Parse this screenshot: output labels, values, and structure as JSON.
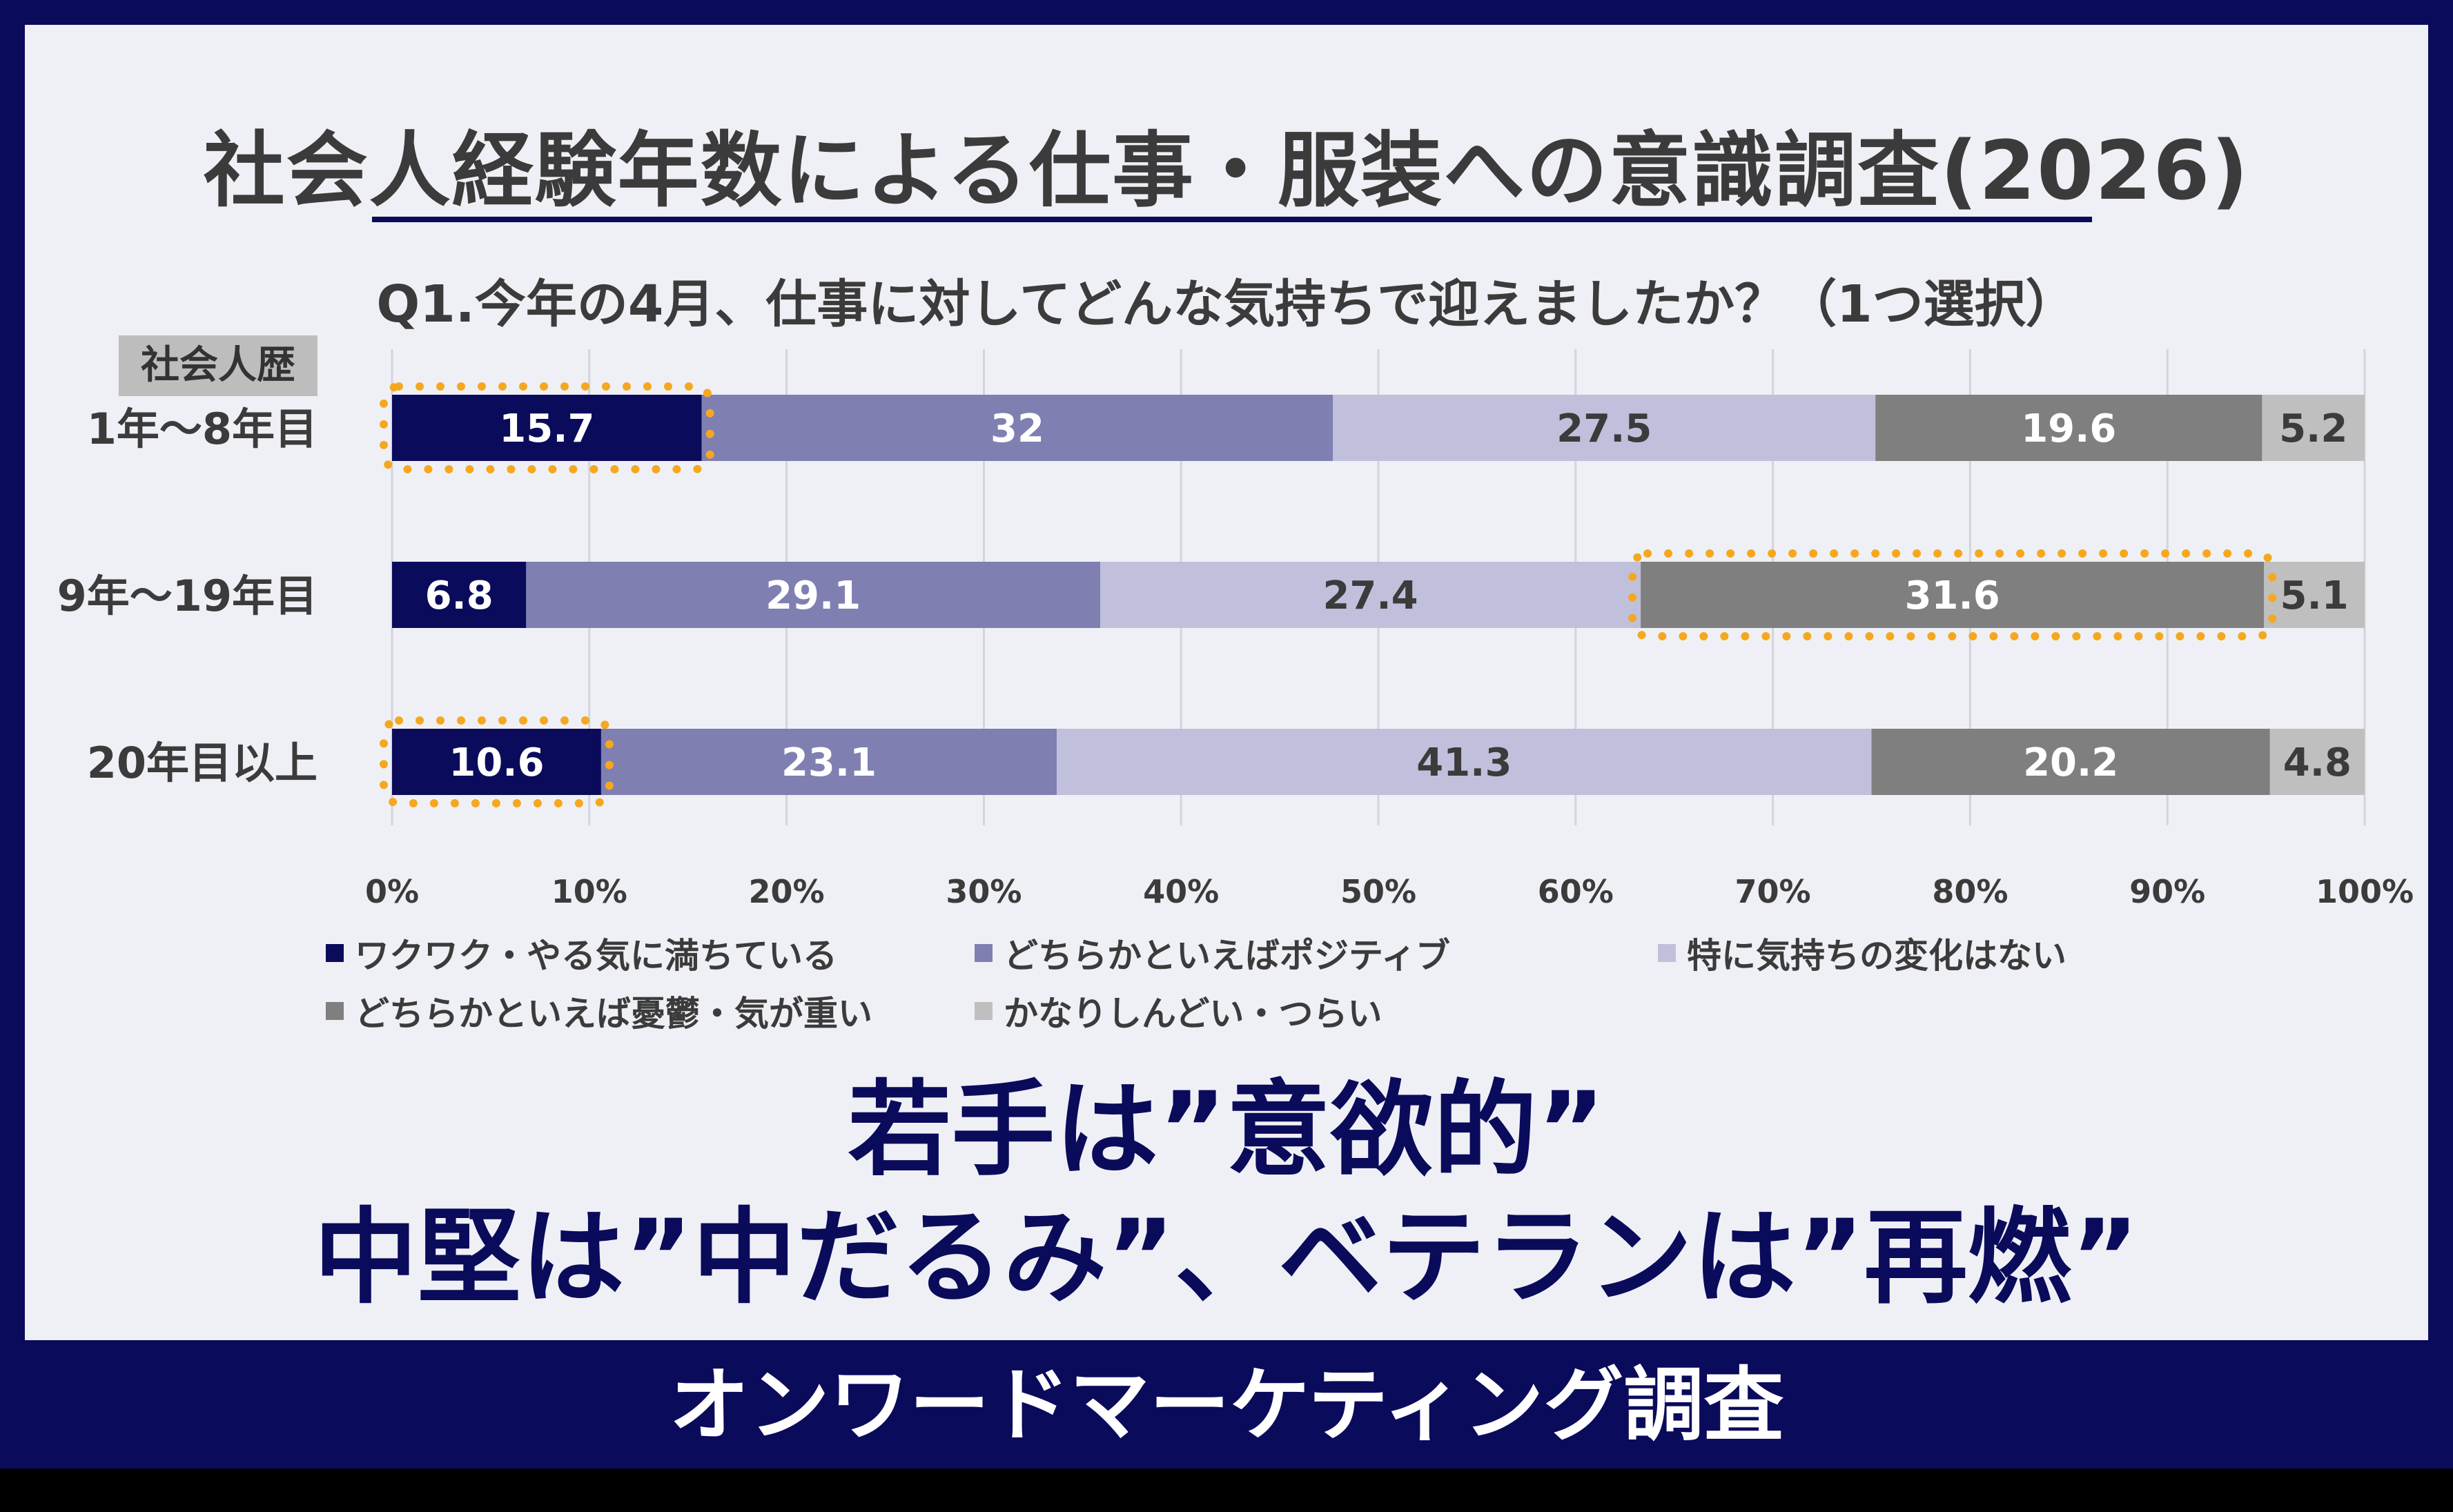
{
  "title": "社会人経験年数による仕事・服装への意識調査(2026)",
  "question": "Q1.今年の4月、仕事に対してどんな気持ちで迎えましたか？（1つ選択）",
  "category_header": "社会人歴",
  "headline_line1": "若手は”意欲的”",
  "headline_line2": "中堅は”中だるみ”、ベテランは”再燃”",
  "footer": "オンワードマーケティング調査",
  "colors": {
    "navy": "#0b0b5c",
    "panel": "#eff0f5",
    "highlight": "#f5a81f"
  },
  "chart_data": {
    "type": "bar",
    "orientation": "horizontal-stacked-100",
    "categories": [
      "1年～8年目",
      "9年～19年目",
      "20年目以上"
    ],
    "series": [
      {
        "name": "ワクワク・やる気に満ちている",
        "values": [
          15.7,
          6.8,
          10.6
        ],
        "color": "#0b0b5c",
        "label_color": "#ffffff"
      },
      {
        "name": "どちらかといえばポジティブ",
        "values": [
          32,
          29.1,
          23.1
        ],
        "color": "#7f7fb2",
        "label_color": "#ffffff"
      },
      {
        "name": "特に気持ちの変化はない",
        "values": [
          27.5,
          27.4,
          41.3
        ],
        "color": "#c0c0dc",
        "label_color": "#3b3b3b"
      },
      {
        "name": "どちらかといえば憂鬱・気が重い",
        "values": [
          19.6,
          31.6,
          20.2
        ],
        "color": "#7f7f7f",
        "label_color": "#ffffff"
      },
      {
        "name": "かなりしんどい・つらい",
        "values": [
          5.2,
          5.1,
          4.8
        ],
        "color": "#bfbfbf",
        "label_color": "#3b3b3b"
      }
    ],
    "x_ticks": [
      "0%",
      "10%",
      "20%",
      "30%",
      "40%",
      "50%",
      "60%",
      "70%",
      "80%",
      "90%",
      "100%"
    ],
    "xlim": [
      0,
      100
    ],
    "grid": true,
    "legend_position": "bottom",
    "highlighted": [
      {
        "category": "1年～8年目",
        "series": "ワクワク・やる気に満ちている"
      },
      {
        "category": "9年～19年目",
        "series": "どちらかといえば憂鬱・気が重い"
      },
      {
        "category": "20年目以上",
        "series": "ワクワク・やる気に満ちている"
      }
    ]
  }
}
